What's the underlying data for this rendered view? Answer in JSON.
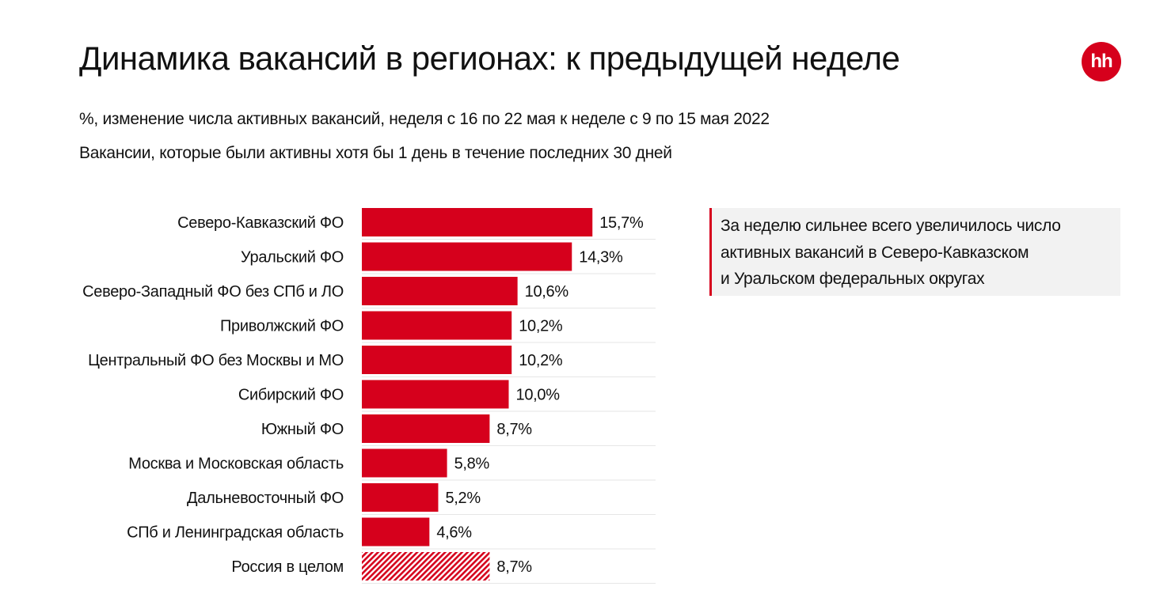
{
  "header": {
    "title": "Динамика вакансий в регионах: к предыдущей неделе",
    "subtitle_1": "%, изменение числа активных вакансий, неделя с 16 по 22 мая к неделе с 9 по 15 мая 2022",
    "subtitle_2": "Вакансии, которые были активны хотя бы 1 день в течение последних 30 дней",
    "logo_text": "hh"
  },
  "note": {
    "lines": [
      "За неделю сильнее всего увеличилось число",
      "активных вакансий в Северо-Кавказском",
      "и Уральском федеральных округах"
    ]
  },
  "colors": {
    "accent": "#d6001c",
    "separator": "#e6e6e6",
    "note_bg": "#f2f2f2"
  },
  "chart_data": {
    "type": "bar",
    "orientation": "horizontal",
    "title": "Динамика вакансий в регионах: к предыдущей неделе",
    "xlabel": "",
    "ylabel": "",
    "unit": "%",
    "xlim": [
      0,
      20
    ],
    "grid": false,
    "categories": [
      "Северо-Кавказский ФО",
      "Уральский ФО",
      "Северо-Западный ФО без СПб и ЛО",
      "Приволжский ФО",
      "Центральный ФО без Москвы и МО",
      "Сибирский ФО",
      "Южный ФО",
      "Москва и Московская область",
      "Дальневосточный ФО",
      "СПб и Ленинградская область",
      "Россия в целом"
    ],
    "values": [
      15.7,
      14.3,
      10.6,
      10.2,
      10.2,
      10.0,
      8.7,
      5.8,
      5.2,
      4.6,
      8.7
    ],
    "value_labels": [
      "15,7%",
      "14,3%",
      "10,6%",
      "10,2%",
      "10,2%",
      "10,0%",
      "8,7%",
      "5,8%",
      "5,2%",
      "4,6%",
      "8,7%"
    ],
    "hatched": [
      false,
      false,
      false,
      false,
      false,
      false,
      false,
      false,
      false,
      false,
      true
    ]
  }
}
